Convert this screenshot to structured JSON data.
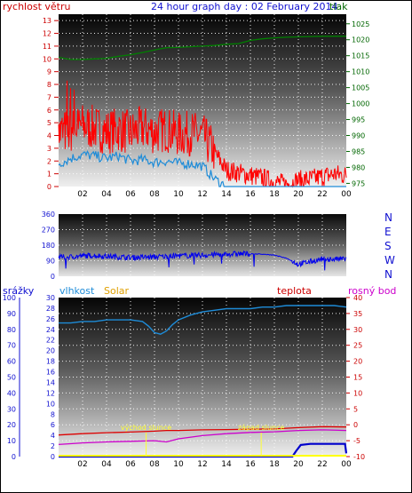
{
  "chart_data": [
    {
      "type": "line",
      "title": "24 hour graph day : 02 February 2014",
      "left_label": "rychlost větru",
      "right_label": "tlak",
      "left_ticks": [
        "0",
        "1",
        "2",
        "3",
        "4",
        "5",
        "6",
        "7",
        "8",
        "9",
        "10",
        "11",
        "12",
        "13"
      ],
      "right_ticks": [
        "975",
        "980",
        "985",
        "990",
        "995",
        "1000",
        "1005",
        "1010",
        "1015",
        "1020",
        "1025"
      ],
      "x_ticks": [
        "02",
        "04",
        "06",
        "08",
        "10",
        "12",
        "14",
        "16",
        "18",
        "20",
        "22",
        "00"
      ],
      "ylim_left": [
        0,
        13.5
      ],
      "ylim_right": [
        974,
        1028
      ],
      "grid": true,
      "colors": {
        "gust": "#ff0000",
        "wind": "#1e8cd8",
        "pressure": "#008000"
      },
      "series": [
        {
          "key": "gust",
          "x": [
            0,
            1,
            2,
            3,
            4,
            5,
            6,
            7,
            8,
            9,
            10,
            11,
            12,
            13,
            14,
            15,
            16,
            17,
            18,
            19,
            20,
            21,
            22,
            23,
            24
          ],
          "values": [
            4.0,
            4.2,
            4.6,
            4.4,
            4.1,
            4.3,
            4.0,
            4.4,
            4.1,
            4.3,
            3.9,
            4.0,
            3.8,
            2.6,
            1.2,
            1.0,
            0.8,
            0.6,
            0.3,
            0.1,
            0.4,
            0.5,
            0.7,
            0.9,
            0.8
          ]
        },
        {
          "key": "wind",
          "x": [
            0,
            1,
            2,
            3,
            4,
            5,
            6,
            7,
            8,
            9,
            10,
            11,
            12,
            13,
            14,
            15,
            16,
            17,
            18,
            19,
            20,
            21,
            22,
            23,
            24
          ],
          "values": [
            1.8,
            2.2,
            2.5,
            2.4,
            2.2,
            2.4,
            2.0,
            2.1,
            1.9,
            2.0,
            1.8,
            1.8,
            1.6,
            0.6,
            0.0,
            0.0,
            0.0,
            0.0,
            0.0,
            0.0,
            0.0,
            0.0,
            0.0,
            0.0,
            0.0
          ]
        },
        {
          "key": "pressure",
          "x": [
            0,
            1,
            2,
            3,
            4,
            5,
            6,
            7,
            8,
            9,
            10,
            11,
            12,
            13,
            14,
            15,
            16,
            17,
            18,
            19,
            20,
            21,
            22,
            23,
            24
          ],
          "values": [
            1014.5,
            1013.8,
            1013.8,
            1014.0,
            1014.2,
            1014.8,
            1015.3,
            1016.0,
            1016.8,
            1017.5,
            1017.6,
            1017.8,
            1018.0,
            1018.2,
            1018.6,
            1018.8,
            1019.8,
            1020.3,
            1020.6,
            1020.8,
            1020.9,
            1021.0,
            1021.1,
            1021.1,
            1021.1
          ]
        }
      ]
    },
    {
      "type": "line",
      "left_ticks": [
        "0",
        "90",
        "180",
        "270",
        "360"
      ],
      "right_ticks": [
        "N",
        "W",
        "S",
        "E",
        "N"
      ],
      "ylim": [
        0,
        360
      ],
      "grid": true,
      "colors": {
        "direction": "#0000ee"
      },
      "series": [
        {
          "key": "direction",
          "x": [
            0,
            1,
            2,
            3,
            4,
            5,
            6,
            7,
            8,
            9,
            10,
            11,
            12,
            13,
            14,
            15,
            16,
            17,
            18,
            19,
            20,
            21,
            22,
            23,
            24
          ],
          "values": [
            110,
            112,
            118,
            120,
            115,
            112,
            108,
            110,
            112,
            115,
            118,
            120,
            122,
            125,
            128,
            130,
            130,
            128,
            122,
            105,
            70,
            85,
            100,
            98,
            102
          ]
        }
      ]
    },
    {
      "type": "line",
      "labels": {
        "rain": "srážky",
        "humidity": "vlhkost",
        "solar": "Solar",
        "temp": "teplota",
        "dew": "rosný bod"
      },
      "left_ticks_a": [
        "0",
        "10",
        "20",
        "30",
        "40",
        "50",
        "60",
        "70",
        "80",
        "90",
        "100"
      ],
      "left_ticks_b": [
        "0",
        "2",
        "4",
        "6",
        "8",
        "10",
        "12",
        "14",
        "16",
        "18",
        "20",
        "22",
        "24",
        "26",
        "28",
        "30"
      ],
      "right_ticks": [
        "-10",
        "-5",
        "0",
        "5",
        "10",
        "15",
        "20",
        "25",
        "30",
        "35",
        "40"
      ],
      "x_ticks": [
        "02",
        "04",
        "06",
        "08",
        "10",
        "12",
        "14",
        "16",
        "18",
        "20",
        "22",
        "00"
      ],
      "ylim_humidity": [
        0,
        100
      ],
      "ylim_temp": [
        -10,
        40
      ],
      "ylim_rain": [
        0,
        30
      ],
      "grid": true,
      "annotations": [
        {
          "text": "východ slunce",
          "x": 7.3
        },
        {
          "text": "západ slunce",
          "x": 16.9
        }
      ],
      "colors": {
        "humidity": "#1e8cd8",
        "temp": "#dd0000",
        "dew": "#cc00cc",
        "rain": "#0000cc",
        "solar": "#ffff00"
      },
      "series": [
        {
          "key": "humidity",
          "x": [
            0,
            1,
            2,
            3,
            4,
            5,
            6,
            7,
            7.5,
            8,
            8.5,
            9,
            9.5,
            10,
            11,
            12,
            13,
            14,
            15,
            16,
            17,
            18,
            19,
            20,
            21,
            22,
            23,
            24
          ],
          "values": [
            84,
            84,
            85,
            85,
            86,
            86,
            86,
            85,
            82,
            78,
            77,
            79,
            83,
            86,
            89,
            91,
            92,
            93,
            93,
            93,
            94,
            94,
            95,
            95,
            95,
            95,
            95,
            94
          ]
        },
        {
          "key": "temp",
          "x": [
            0,
            2,
            4,
            6,
            8,
            9,
            10,
            12,
            14,
            16,
            18,
            20,
            22,
            24
          ],
          "values": [
            -3.2,
            -2.8,
            -2.5,
            -2.3,
            -2.0,
            -1.8,
            -1.8,
            -1.6,
            -1.5,
            -1.4,
            -1.3,
            -0.9,
            -0.6,
            -0.7
          ]
        },
        {
          "key": "dew",
          "x": [
            0,
            2,
            4,
            6,
            8,
            9,
            10,
            12,
            14,
            16,
            18,
            20,
            22,
            24
          ],
          "values": [
            -6.2,
            -5.7,
            -5.4,
            -5.2,
            -5.0,
            -5.4,
            -4.4,
            -3.4,
            -2.8,
            -2.4,
            -2.2,
            -1.8,
            -1.6,
            -1.8
          ]
        },
        {
          "key": "rain",
          "x": [
            0,
            19.5,
            19.8,
            20.2,
            21,
            22,
            23,
            23.9,
            24
          ],
          "values": [
            0,
            0,
            1.0,
            2.2,
            2.4,
            2.4,
            2.4,
            2.4,
            0.6
          ]
        },
        {
          "key": "solar",
          "x": [
            0,
            24
          ],
          "values": [
            0,
            0
          ]
        }
      ]
    }
  ]
}
